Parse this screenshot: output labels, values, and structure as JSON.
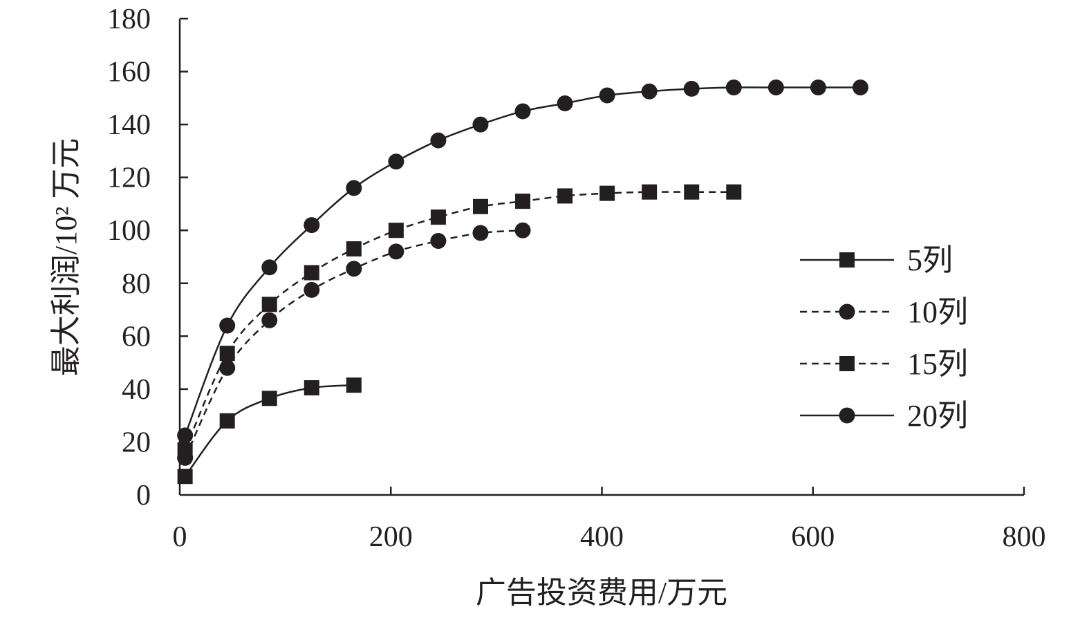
{
  "colors": {
    "ink": "#231f20",
    "background": "#ffffff"
  },
  "chart_data": {
    "type": "line",
    "xlabel": "广告投资费用/万元",
    "ylabel": "最大利润/10² 万元",
    "xlim": [
      0,
      800
    ],
    "ylim": [
      0,
      180
    ],
    "xticks": [
      0,
      200,
      400,
      600,
      800
    ],
    "yticks": [
      0,
      20,
      40,
      60,
      80,
      100,
      120,
      140,
      160,
      180
    ],
    "grid": false,
    "legend_position": "right",
    "series": [
      {
        "name": "5列",
        "line_style": "solid",
        "marker": "square",
        "x": [
          5,
          45,
          85,
          125,
          165
        ],
        "y": [
          7,
          28,
          36.5,
          40.5,
          41.5
        ]
      },
      {
        "name": "10列",
        "line_style": "dashed",
        "marker": "circle",
        "x": [
          5,
          45,
          85,
          125,
          165,
          205,
          245,
          285,
          325
        ],
        "y": [
          14,
          48,
          66,
          77.5,
          85.5,
          92,
          96,
          99,
          100
        ]
      },
      {
        "name": "15列",
        "line_style": "dashed",
        "marker": "square",
        "x": [
          5,
          45,
          85,
          125,
          165,
          205,
          245,
          285,
          325,
          365,
          405,
          445,
          485,
          525
        ],
        "y": [
          17,
          53.5,
          72,
          84,
          93,
          100,
          105,
          109,
          111,
          113,
          114,
          114.5,
          114.5,
          114.5
        ]
      },
      {
        "name": "20列",
        "line_style": "solid",
        "marker": "circle",
        "x": [
          5,
          45,
          85,
          125,
          165,
          205,
          245,
          285,
          325,
          365,
          405,
          445,
          485,
          525,
          565,
          605,
          645
        ],
        "y": [
          22.5,
          64,
          86,
          102,
          116,
          126,
          134,
          140,
          145,
          148,
          151,
          152.5,
          153.5,
          154,
          154,
          154,
          154
        ]
      }
    ]
  }
}
